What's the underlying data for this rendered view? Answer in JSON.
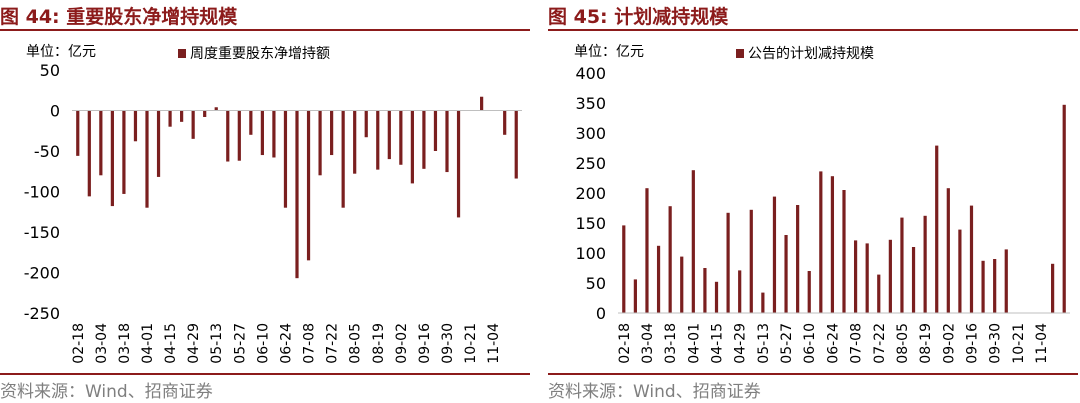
{
  "panels": [
    {
      "title": "图 44:  重要股东净增持规模",
      "source": "资料来源：Wind、招商证券",
      "chart_data": {
        "type": "bar",
        "unit_label": "单位：亿元",
        "legend": "周度重要股东净增持额",
        "legend_position": "top-center",
        "bar_color": "#7a1f1f",
        "ylim": [
          -250,
          50
        ],
        "yticks": [
          50,
          0,
          -50,
          -100,
          -150,
          -200,
          -250
        ],
        "grid": false,
        "xtick_labels": [
          "02-18",
          "03-04",
          "03-18",
          "04-01",
          "04-15",
          "04-29",
          "05-13",
          "05-27",
          "06-10",
          "06-24",
          "07-08",
          "07-22",
          "08-05",
          "08-19",
          "09-02",
          "09-16",
          "09-30",
          "10-21",
          "11-04"
        ],
        "values": [
          -56,
          -106,
          -80,
          -118,
          -103,
          -38,
          -120,
          -82,
          -20,
          -14,
          -35,
          -8,
          4,
          -63,
          -62,
          -30,
          -55,
          -58,
          -120,
          -207,
          -185,
          -80,
          -55,
          -120,
          -78,
          -33,
          -73,
          -60,
          -67,
          -90,
          -72,
          -50,
          -76,
          -132,
          0,
          17,
          0,
          -30,
          -84
        ]
      }
    },
    {
      "title": "图 45:  计划减持规模",
      "source": "资料来源：Wind、招商证券",
      "chart_data": {
        "type": "bar",
        "unit_label": "单位：亿元",
        "legend": "公告的计划减持规模",
        "legend_position": "top-center",
        "bar_color": "#7a1f1f",
        "ylim": [
          0,
          400
        ],
        "yticks": [
          400,
          350,
          300,
          250,
          200,
          150,
          100,
          50,
          0
        ],
        "grid": false,
        "xtick_labels": [
          "02-18",
          "03-04",
          "03-18",
          "04-01",
          "04-15",
          "04-29",
          "05-13",
          "05-27",
          "06-10",
          "06-24",
          "07-08",
          "07-22",
          "08-05",
          "08-19",
          "09-02",
          "09-16",
          "09-30",
          "10-21",
          "11-04"
        ],
        "values": [
          146,
          56,
          208,
          112,
          178,
          94,
          238,
          75,
          52,
          167,
          71,
          172,
          34,
          194,
          130,
          180,
          70,
          236,
          228,
          205,
          121,
          116,
          64,
          122,
          159,
          110,
          162,
          279,
          208,
          139,
          179,
          87,
          90,
          106,
          0,
          0,
          0,
          82,
          347
        ]
      }
    }
  ]
}
